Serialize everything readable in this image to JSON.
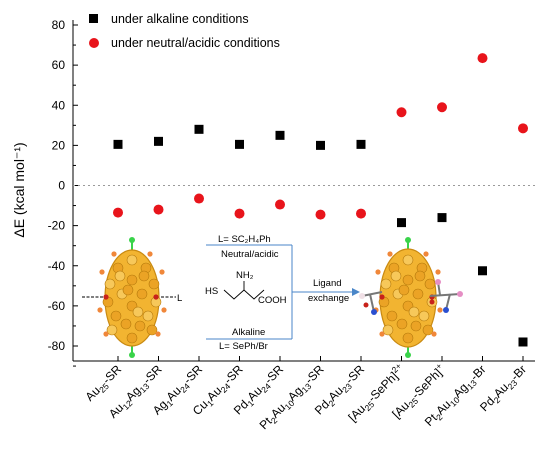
{
  "chart_data": {
    "type": "scatter",
    "title": "",
    "ylabel": "ΔE (kcal mol⁻¹)",
    "xlabel": "",
    "ylim": [
      -90,
      85
    ],
    "yticks": [
      80,
      60,
      40,
      20,
      0,
      -20,
      -40,
      -60,
      -80
    ],
    "grid": false,
    "zero_line": "dotted",
    "legend_position": "top-left",
    "categories": [
      "Au25-SR",
      "Au12Ag13-SR",
      "Ag1Au24-SR",
      "Cu1Au24-SR",
      "Pd1Au24-SR",
      "Pt2Au10Ag13-SR",
      "Pd2Au23-SR",
      "[Au25-SePh]2+",
      "[Au25-SePh]+",
      "Pt2Au10Ag13-Br",
      "Pd2Au23-Br"
    ],
    "category_labels_rich": [
      [
        {
          "t": "Au"
        },
        {
          "t": "25",
          "s": "sub"
        },
        {
          "t": "-SR"
        }
      ],
      [
        {
          "t": "Au"
        },
        {
          "t": "12",
          "s": "sub"
        },
        {
          "t": "Ag"
        },
        {
          "t": "13",
          "s": "sub"
        },
        {
          "t": "-SR"
        }
      ],
      [
        {
          "t": "Ag"
        },
        {
          "t": "1",
          "s": "sub"
        },
        {
          "t": "Au"
        },
        {
          "t": "24",
          "s": "sub"
        },
        {
          "t": "-SR"
        }
      ],
      [
        {
          "t": "Cu"
        },
        {
          "t": "1",
          "s": "sub"
        },
        {
          "t": "Au"
        },
        {
          "t": "24",
          "s": "sub"
        },
        {
          "t": "-SR"
        }
      ],
      [
        {
          "t": "Pd"
        },
        {
          "t": "1",
          "s": "sub"
        },
        {
          "t": "Au"
        },
        {
          "t": "24",
          "s": "sub"
        },
        {
          "t": "-SR"
        }
      ],
      [
        {
          "t": "Pt"
        },
        {
          "t": "2",
          "s": "sub"
        },
        {
          "t": "Au"
        },
        {
          "t": "10",
          "s": "sub"
        },
        {
          "t": "Ag"
        },
        {
          "t": "13",
          "s": "sub"
        },
        {
          "t": "-SR"
        }
      ],
      [
        {
          "t": "Pd"
        },
        {
          "t": "2",
          "s": "sub"
        },
        {
          "t": "Au"
        },
        {
          "t": "23",
          "s": "sub"
        },
        {
          "t": "-SR"
        }
      ],
      [
        {
          "t": "[Au"
        },
        {
          "t": "25",
          "s": "sub"
        },
        {
          "t": "-SePh]"
        },
        {
          "t": "2+",
          "s": "sup"
        }
      ],
      [
        {
          "t": "[Au"
        },
        {
          "t": "25",
          "s": "sub"
        },
        {
          "t": "-SePh]"
        },
        {
          "t": "+",
          "s": "sup"
        }
      ],
      [
        {
          "t": "Pt"
        },
        {
          "t": "2",
          "s": "sub"
        },
        {
          "t": "Au"
        },
        {
          "t": "10",
          "s": "sub"
        },
        {
          "t": "Ag"
        },
        {
          "t": "13",
          "s": "sub"
        },
        {
          "t": "-Br"
        }
      ],
      [
        {
          "t": "Pd"
        },
        {
          "t": "2",
          "s": "sub"
        },
        {
          "t": "Au"
        },
        {
          "t": "23",
          "s": "sub"
        },
        {
          "t": "-Br"
        }
      ]
    ],
    "series": [
      {
        "name": "under alkaline conditions",
        "marker": "square",
        "color": "#000000",
        "values": [
          20.5,
          22,
          28,
          20.5,
          25,
          20,
          20.5,
          -18.5,
          -16,
          -42.5,
          -78
        ]
      },
      {
        "name": "under neutral/acidic conditions",
        "marker": "circle",
        "color": "#e8141b",
        "values": [
          -13.5,
          -12,
          -6.5,
          -14,
          -9.5,
          -14.5,
          -14,
          36.5,
          39,
          63.5,
          28.5
        ]
      }
    ]
  },
  "inset": {
    "top_ligand_label": "L= SC₂H₄Ph",
    "top_condition_label": "Neutral/acidic",
    "molecule_nh2": "NH₂",
    "molecule_hs": "HS",
    "molecule_cooh": "COOH",
    "bottom_condition_label": "Alkaline",
    "bottom_ligand_label": "L= SePh/Br",
    "arrow_label_line1": "Ligand",
    "arrow_label_line2": "exchange",
    "cluster_end_label": "L",
    "colors": {
      "gold": "#f2b431",
      "gold_dark": "#c98a12",
      "orange_ligand": "#f0873a",
      "green_atom": "#39d34a",
      "arrow_blue": "#4a86c8",
      "red_sulfur": "#c8221a"
    }
  }
}
